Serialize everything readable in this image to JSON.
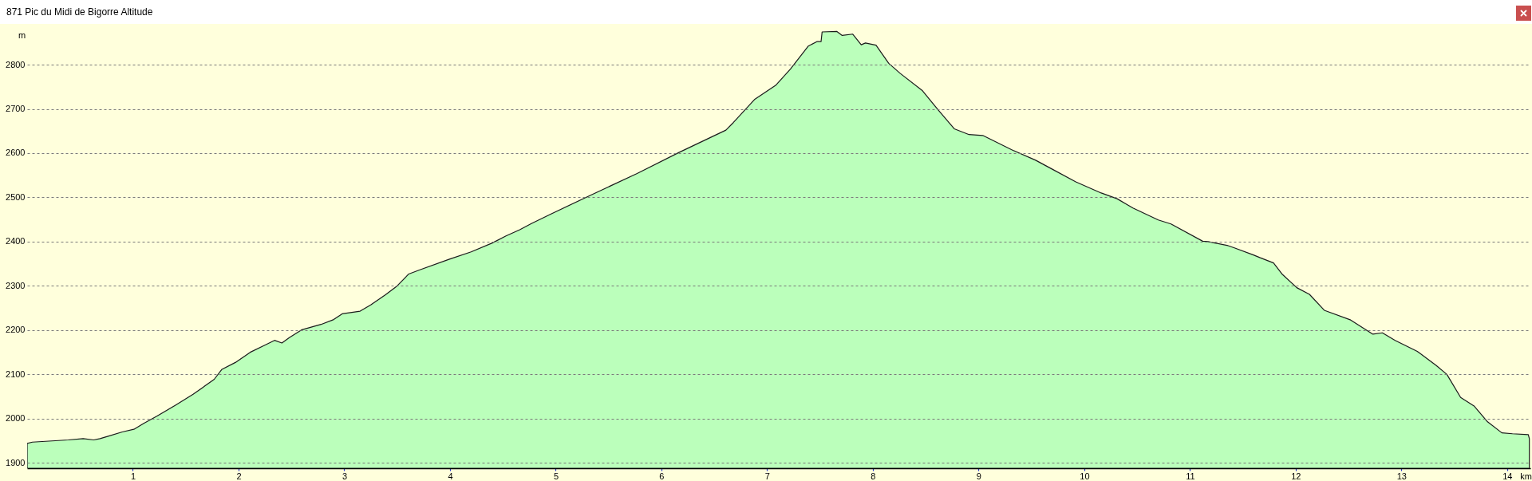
{
  "chart_data": {
    "type": "area",
    "title": "871 Pic du Midi de Bigorre Altitude",
    "xlabel": "km",
    "ylabel": "m",
    "x": [
      0,
      0.05,
      0.39,
      0.53,
      0.63,
      0.69,
      0.76,
      0.9,
      1.01,
      1.1,
      1.23,
      1.4,
      1.57,
      1.77,
      1.84,
      1.97,
      2.11,
      2.24,
      2.34,
      2.41,
      2.48,
      2.6,
      2.78,
      2.9,
      2.98,
      3.15,
      3.25,
      3.39,
      3.5,
      3.61,
      3.71,
      3.99,
      4.2,
      4.4,
      4.53,
      4.66,
      4.77,
      4.96,
      5.33,
      5.77,
      6.17,
      6.61,
      6.68,
      6.88,
      7.08,
      7.22,
      7.39,
      7.47,
      7.51,
      7.52,
      7.66,
      7.71,
      7.81,
      7.89,
      7.93,
      8.03,
      8.15,
      8.26,
      8.47,
      8.62,
      8.77,
      8.91,
      9.04,
      9.31,
      9.54,
      9.68,
      9.92,
      10.16,
      10.31,
      10.46,
      10.7,
      10.82,
      11.12,
      11.17,
      11.36,
      11.42,
      11.6,
      11.66,
      11.79,
      11.87,
      12.01,
      12.13,
      12.27,
      12.52,
      12.73,
      12.82,
      12.94,
      13.15,
      13.33,
      13.43,
      13.56,
      13.69,
      13.81,
      13.95,
      14.05,
      14.2,
      14.21
    ],
    "values": [
      1944,
      1947,
      1952,
      1955,
      1952,
      1955,
      1960,
      1970,
      1976,
      1989,
      2006,
      2030,
      2055,
      2089,
      2111,
      2127,
      2150,
      2165,
      2177,
      2171,
      2183,
      2201,
      2213,
      2224,
      2237,
      2243,
      2257,
      2280,
      2300,
      2327,
      2336,
      2360,
      2377,
      2397,
      2413,
      2427,
      2441,
      2463,
      2505,
      2554,
      2602,
      2652,
      2669,
      2721,
      2753,
      2790,
      2842,
      2852,
      2852,
      2874,
      2875,
      2866,
      2869,
      2845,
      2849,
      2844,
      2803,
      2780,
      2741,
      2697,
      2655,
      2642,
      2640,
      2608,
      2584,
      2566,
      2535,
      2510,
      2497,
      2476,
      2449,
      2440,
      2401,
      2400,
      2391,
      2386,
      2370,
      2364,
      2352,
      2327,
      2296,
      2281,
      2245,
      2223,
      2191,
      2194,
      2177,
      2152,
      2120,
      2100,
      2048,
      2028,
      1994,
      1968,
      1966,
      1964,
      1955
    ],
    "color": "#bbffbb",
    "xlim": [
      0,
      14.22
    ],
    "xticks": [
      1,
      2,
      3,
      4,
      5,
      6,
      7,
      8,
      9,
      10,
      11,
      12,
      13,
      14
    ],
    "ylim": [
      1888,
      2892
    ],
    "yticks": [
      1900,
      2000,
      2100,
      2200,
      2300,
      2400,
      2500,
      2600,
      2700,
      2800
    ],
    "grid": "y"
  }
}
